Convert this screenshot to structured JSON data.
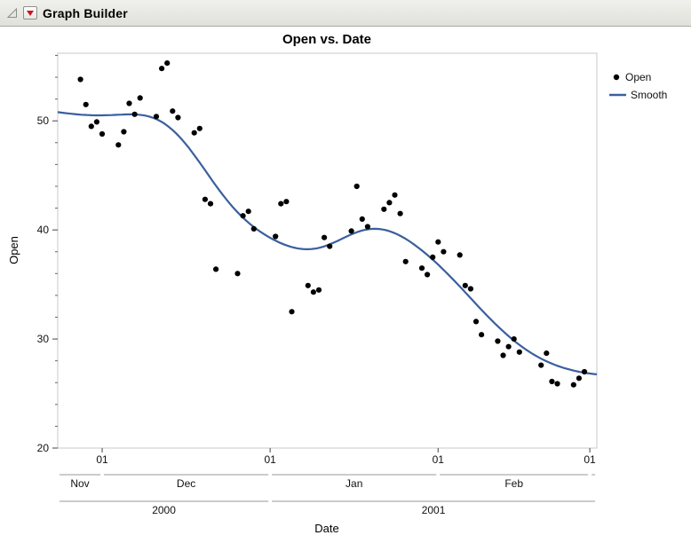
{
  "window": {
    "title": "Graph Builder"
  },
  "chart_data": {
    "type": "scatter",
    "title": "Open vs. Date",
    "xlabel": "Date",
    "ylabel": "Open",
    "legend": [
      {
        "label": "Open",
        "marker": "point",
        "color": "#000000"
      },
      {
        "label": "Smooth",
        "marker": "line",
        "color": "#3a5f9e"
      }
    ],
    "y_axis": {
      "min": 20,
      "max": 56.2,
      "major_ticks": [
        20,
        30,
        40,
        50
      ],
      "minor_step": 2
    },
    "x_axis": {
      "epoch": "2000-11-01",
      "min_days": 21.8,
      "max_days": 121.3,
      "day_tick_label": "01",
      "month_ticks_days": [
        30,
        61,
        92,
        120
      ],
      "month_spans": [
        {
          "label": "Nov",
          "from": 21.8,
          "to": 30
        },
        {
          "label": "Dec",
          "from": 30,
          "to": 61
        },
        {
          "label": "Jan",
          "from": 61,
          "to": 92
        },
        {
          "label": "Feb",
          "from": 92,
          "to": 120
        },
        {
          "label": "",
          "from": 120,
          "to": 121.3
        }
      ],
      "year_spans": [
        {
          "label": "2000",
          "from": 21.8,
          "to": 61
        },
        {
          "label": "2001",
          "from": 61,
          "to": 121.3
        }
      ]
    },
    "smoother": {
      "bandwidth_days": 6.5,
      "color": "#3a5f9e",
      "width": 2.2
    },
    "points_color": "#000000",
    "point_radius": 3.1,
    "points": [
      [
        "2000-11-27",
        53.8
      ],
      [
        "2000-11-28",
        51.5
      ],
      [
        "2000-11-29",
        49.5
      ],
      [
        "2000-11-30",
        49.9
      ],
      [
        "2000-12-01",
        48.8
      ],
      [
        "2000-12-04",
        47.8
      ],
      [
        "2000-12-05",
        49.0
      ],
      [
        "2000-12-06",
        51.6
      ],
      [
        "2000-12-07",
        50.6
      ],
      [
        "2000-12-08",
        52.1
      ],
      [
        "2000-12-11",
        50.4
      ],
      [
        "2000-12-12",
        54.8
      ],
      [
        "2000-12-13",
        55.3
      ],
      [
        "2000-12-14",
        50.9
      ],
      [
        "2000-12-15",
        50.3
      ],
      [
        "2000-12-18",
        48.9
      ],
      [
        "2000-12-19",
        49.3
      ],
      [
        "2000-12-20",
        42.8
      ],
      [
        "2000-12-21",
        42.4
      ],
      [
        "2000-12-22",
        36.4
      ],
      [
        "2000-12-26",
        36.0
      ],
      [
        "2000-12-27",
        41.3
      ],
      [
        "2000-12-28",
        41.7
      ],
      [
        "2000-12-29",
        40.1
      ],
      [
        "2001-01-02",
        39.4
      ],
      [
        "2001-01-03",
        42.4
      ],
      [
        "2001-01-04",
        42.6
      ],
      [
        "2001-01-05",
        32.5
      ],
      [
        "2001-01-08",
        34.9
      ],
      [
        "2001-01-09",
        34.3
      ],
      [
        "2001-01-10",
        34.5
      ],
      [
        "2001-01-11",
        39.3
      ],
      [
        "2001-01-12",
        38.5
      ],
      [
        "2001-01-16",
        39.9
      ],
      [
        "2001-01-17",
        44.0
      ],
      [
        "2001-01-18",
        41.0
      ],
      [
        "2001-01-19",
        40.3
      ],
      [
        "2001-01-22",
        41.9
      ],
      [
        "2001-01-23",
        42.5
      ],
      [
        "2001-01-24",
        43.2
      ],
      [
        "2001-01-25",
        41.5
      ],
      [
        "2001-01-26",
        37.1
      ],
      [
        "2001-01-29",
        36.5
      ],
      [
        "2001-01-30",
        35.9
      ],
      [
        "2001-01-31",
        37.5
      ],
      [
        "2001-02-01",
        38.9
      ],
      [
        "2001-02-02",
        38.0
      ],
      [
        "2001-02-05",
        37.7
      ],
      [
        "2001-02-06",
        34.9
      ],
      [
        "2001-02-07",
        34.6
      ],
      [
        "2001-02-08",
        31.6
      ],
      [
        "2001-02-09",
        30.4
      ],
      [
        "2001-02-12",
        29.8
      ],
      [
        "2001-02-13",
        28.5
      ],
      [
        "2001-02-14",
        29.3
      ],
      [
        "2001-02-15",
        30.0
      ],
      [
        "2001-02-16",
        28.8
      ],
      [
        "2001-02-20",
        27.6
      ],
      [
        "2001-02-21",
        28.7
      ],
      [
        "2001-02-22",
        26.1
      ],
      [
        "2001-02-23",
        25.9
      ],
      [
        "2001-02-26",
        25.8
      ],
      [
        "2001-02-27",
        26.4
      ],
      [
        "2001-02-28",
        27.0
      ]
    ]
  }
}
